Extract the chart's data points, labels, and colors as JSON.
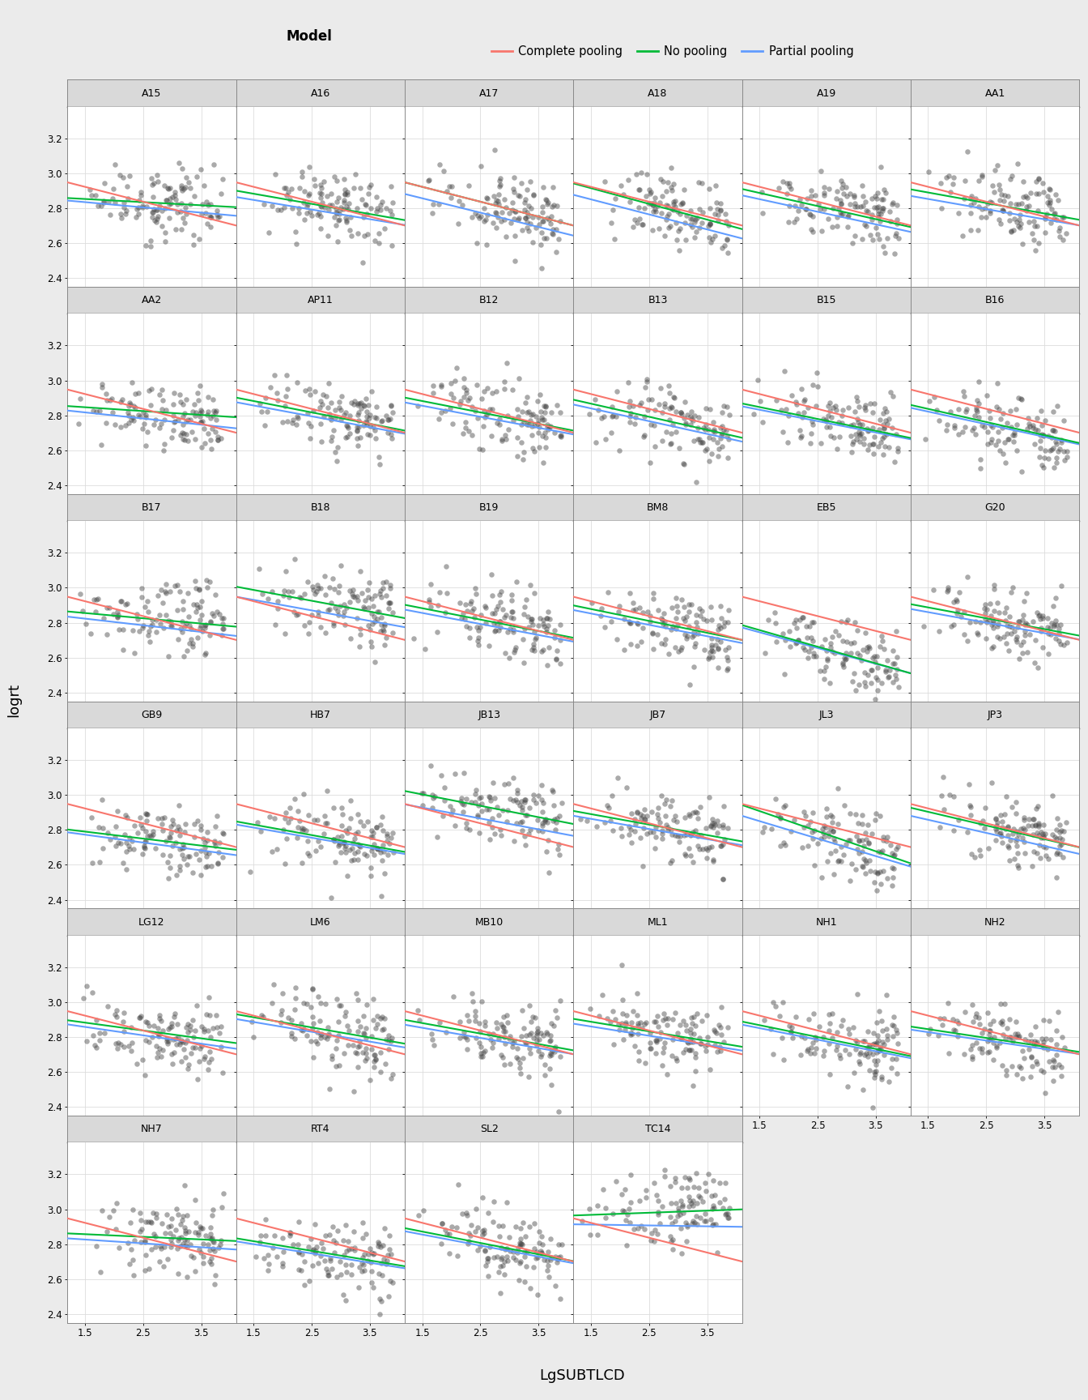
{
  "participants": [
    "A15",
    "A16",
    "A17",
    "A18",
    "A19",
    "AA1",
    "AA2",
    "AP11",
    "B12",
    "B13",
    "B15",
    "B16",
    "B17",
    "B18",
    "B19",
    "BM8",
    "EB5",
    "G20",
    "GB9",
    "HB7",
    "JB13",
    "JB7",
    "JL3",
    "JP3",
    "LG12",
    "LM6",
    "MB10",
    "ML1",
    "NH1",
    "NH2",
    "NH7",
    "RT4",
    "SL2",
    "TC14"
  ],
  "ncols": 6,
  "xlim": [
    1.2,
    4.1
  ],
  "ylim": [
    2.35,
    3.38
  ],
  "yticks": [
    2.4,
    2.6,
    2.8,
    3.0,
    3.2
  ],
  "xticks": [
    1.5,
    2.5,
    3.5
  ],
  "xlabel": "LgSUBTLCD",
  "ylabel": "logrt",
  "complete_pooling_color": "#F8766D",
  "no_pooling_color": "#00BA38",
  "partial_pooling_color": "#619CFF",
  "scatter_color": "#444444",
  "fig_bg": "#EBEBEB",
  "plot_bg": "#FFFFFF",
  "grid_color": "#DDDDDD",
  "strip_bg": "#D9D9D9",
  "strip_border": "#AAAAAA",
  "complete_pooling_intercept": 3.05,
  "complete_pooling_slope": -0.085,
  "seed": 42,
  "n_points": 120,
  "line_width": 1.5,
  "participant_params": {
    "A15": {
      "np_int": 2.88,
      "np_sl": -0.018,
      "pp_int": 2.88,
      "pp_sl": -0.03
    },
    "A16": {
      "np_int": 2.97,
      "np_sl": -0.058,
      "pp_int": 2.93,
      "pp_sl": -0.055
    },
    "A17": {
      "np_int": 3.05,
      "np_sl": -0.085,
      "pp_int": 2.98,
      "pp_sl": -0.082
    },
    "A18": {
      "np_int": 3.05,
      "np_sl": -0.09,
      "pp_int": 2.98,
      "pp_sl": -0.086
    },
    "A19": {
      "np_int": 3.0,
      "np_sl": -0.075,
      "pp_int": 2.96,
      "pp_sl": -0.072
    },
    "AA1": {
      "np_int": 2.98,
      "np_sl": -0.06,
      "pp_int": 2.94,
      "pp_sl": -0.058
    },
    "AA2": {
      "np_int": 2.88,
      "np_sl": -0.022,
      "pp_int": 2.87,
      "pp_sl": -0.035
    },
    "AP11": {
      "np_int": 2.98,
      "np_sl": -0.065,
      "pp_int": 2.95,
      "pp_sl": -0.062
    },
    "B12": {
      "np_int": 2.98,
      "np_sl": -0.065,
      "pp_int": 2.95,
      "pp_sl": -0.063
    },
    "B13": {
      "np_int": 2.98,
      "np_sl": -0.075,
      "pp_int": 2.95,
      "pp_sl": -0.073
    },
    "B15": {
      "np_int": 2.95,
      "np_sl": -0.068,
      "pp_int": 2.93,
      "pp_sl": -0.065
    },
    "B16": {
      "np_int": 2.95,
      "np_sl": -0.075,
      "pp_int": 2.93,
      "pp_sl": -0.072
    },
    "B17": {
      "np_int": 2.9,
      "np_sl": -0.03,
      "pp_int": 2.88,
      "pp_sl": -0.038
    },
    "B18": {
      "np_int": 3.08,
      "np_sl": -0.062,
      "pp_int": 3.02,
      "pp_sl": -0.06
    },
    "B19": {
      "np_int": 2.98,
      "np_sl": -0.065,
      "pp_int": 2.95,
      "pp_sl": -0.063
    },
    "BM8": {
      "np_int": 2.98,
      "np_sl": -0.068,
      "pp_int": 2.95,
      "pp_sl": -0.065
    },
    "EB5": {
      "np_int": 2.9,
      "np_sl": -0.095,
      "pp_int": 2.88,
      "pp_sl": -0.09
    },
    "G20": {
      "np_int": 2.98,
      "np_sl": -0.062,
      "pp_int": 2.95,
      "pp_sl": -0.06
    },
    "GB9": {
      "np_int": 2.85,
      "np_sl": -0.04,
      "pp_int": 2.84,
      "pp_sl": -0.045
    },
    "HB7": {
      "np_int": 2.92,
      "np_sl": -0.06,
      "pp_int": 2.9,
      "pp_sl": -0.058
    },
    "JB13": {
      "np_int": 3.1,
      "np_sl": -0.065,
      "pp_int": 3.02,
      "pp_sl": -0.062
    },
    "JB7": {
      "np_int": 2.98,
      "np_sl": -0.06,
      "pp_int": 2.95,
      "pp_sl": -0.058
    },
    "JL3": {
      "np_int": 3.08,
      "np_sl": -0.115,
      "pp_int": 3.0,
      "pp_sl": -0.1
    },
    "JP3": {
      "np_int": 3.02,
      "np_sl": -0.078,
      "pp_int": 2.97,
      "pp_sl": -0.075
    },
    "LG12": {
      "np_int": 2.95,
      "np_sl": -0.045,
      "pp_int": 2.93,
      "pp_sl": -0.048
    },
    "LM6": {
      "np_int": 3.0,
      "np_sl": -0.058,
      "pp_int": 2.97,
      "pp_sl": -0.056
    },
    "MB10": {
      "np_int": 2.97,
      "np_sl": -0.06,
      "pp_int": 2.94,
      "pp_sl": -0.058
    },
    "ML1": {
      "np_int": 2.97,
      "np_sl": -0.055,
      "pp_int": 2.94,
      "pp_sl": -0.053
    },
    "NH1": {
      "np_int": 2.97,
      "np_sl": -0.068,
      "pp_int": 2.95,
      "pp_sl": -0.066
    },
    "NH2": {
      "np_int": 2.92,
      "np_sl": -0.05,
      "pp_int": 2.9,
      "pp_sl": -0.048
    },
    "NH7": {
      "np_int": 2.88,
      "np_sl": -0.015,
      "pp_int": 2.86,
      "pp_sl": -0.022
    },
    "RT4": {
      "np_int": 2.9,
      "np_sl": -0.055,
      "pp_int": 2.88,
      "pp_sl": -0.053
    },
    "SL2": {
      "np_int": 2.97,
      "np_sl": -0.065,
      "pp_int": 2.95,
      "pp_sl": -0.063
    },
    "TC14": {
      "np_int": 2.95,
      "np_sl": 0.012,
      "pp_int": 2.92,
      "pp_sl": -0.005
    }
  }
}
